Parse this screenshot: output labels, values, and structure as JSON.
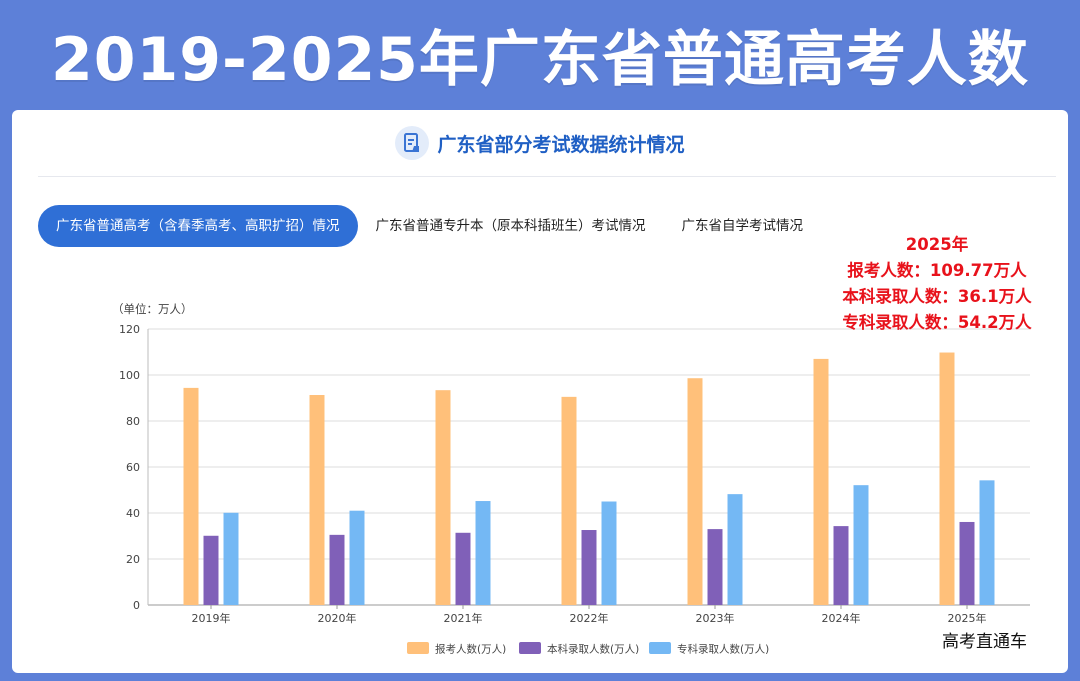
{
  "banner": {
    "title": "2019-2025年广东省普通高考人数"
  },
  "card": {
    "title": "广东省部分考试数据统计情况",
    "tabs": [
      {
        "label": "广东省普通高考（含春季高考、高职扩招）情况",
        "active": true
      },
      {
        "label": "广东省普通专升本（原本科插班生）考试情况",
        "active": false
      },
      {
        "label": "广东省自学考试情况",
        "active": false
      }
    ]
  },
  "annotation": {
    "year": "2025年",
    "line1": "报考人数：109.77万人",
    "line2": "本科录取人数：36.1万人",
    "line3": "专科录取人数：54.2万人"
  },
  "watermark": "高考直通车",
  "colors": {
    "banner_bg": "#5d80d8",
    "accent": "#2f6fd6",
    "series": [
      "#ffc07a",
      "#8060b8",
      "#74b8f4"
    ]
  },
  "chart_data": {
    "type": "bar",
    "unit_label": "（单位：万人）",
    "categories": [
      "2019年",
      "2020年",
      "2021年",
      "2022年",
      "2023年",
      "2024年",
      "2025年"
    ],
    "series": [
      {
        "name": "报考人数(万人)",
        "values": [
          94.4,
          91.3,
          93.4,
          90.5,
          98.6,
          107,
          109.77
        ]
      },
      {
        "name": "本科录取人数(万人)",
        "values": [
          30.1,
          30.5,
          31.4,
          32.6,
          33.0,
          34.3,
          36.1
        ]
      },
      {
        "name": "专科录取人数(万人)",
        "values": [
          40.1,
          41.0,
          45.2,
          45.0,
          48.2,
          52.1,
          54.2
        ]
      }
    ],
    "ylim": [
      0,
      120
    ],
    "yticks": [
      0,
      20,
      40,
      60,
      80,
      100,
      120
    ],
    "grid": true,
    "legend": "bottom-center"
  }
}
